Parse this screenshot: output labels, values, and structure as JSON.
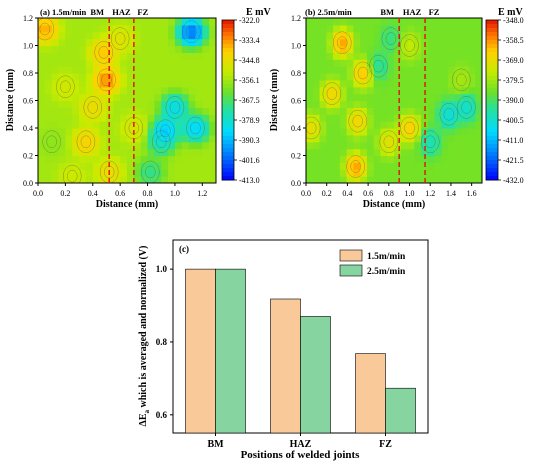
{
  "chart_data": [
    {
      "type": "heatmap",
      "panel_label": "(a) 1.5m/min",
      "xlabel": "Distance (mm)",
      "ylabel": "Distance (mm)",
      "xlim": [
        0,
        1.3
      ],
      "ylim": [
        0,
        1.2
      ],
      "x_ticks": [
        "0.0",
        "0.2",
        "0.4",
        "0.6",
        "0.8",
        "1.0",
        "1.2"
      ],
      "y_ticks": [
        "0.0",
        "0.2",
        "0.4",
        "0.6",
        "0.8",
        "1.0",
        "1.2"
      ],
      "region_labels": [
        "BM",
        "HAZ",
        "FZ"
      ],
      "region_boundaries": [
        0.52,
        0.7
      ],
      "colorbar_title": "E mV",
      "colorbar_ticks": [
        "-322.0",
        "-333.4",
        "-344.8",
        "-356.1",
        "-367.5",
        "-378.9",
        "-390.3",
        "-401.6",
        "-413.0"
      ],
      "z_range": [
        -413.0,
        -322.0
      ],
      "hotspots": [
        {
          "x": 0.05,
          "y": 1.12,
          "v": -330
        },
        {
          "x": 0.48,
          "y": 0.95,
          "v": -333
        },
        {
          "x": 0.5,
          "y": 0.75,
          "v": -326
        },
        {
          "x": 0.4,
          "y": 0.55,
          "v": -340
        },
        {
          "x": 0.35,
          "y": 0.3,
          "v": -336
        },
        {
          "x": 0.7,
          "y": 0.4,
          "v": -346
        },
        {
          "x": 0.52,
          "y": 0.08,
          "v": -340
        },
        {
          "x": 0.2,
          "y": 0.7,
          "v": -347
        },
        {
          "x": 0.6,
          "y": 1.05,
          "v": -344
        },
        {
          "x": 0.9,
          "y": 0.3,
          "v": -382
        },
        {
          "x": 1.0,
          "y": 0.55,
          "v": -392
        },
        {
          "x": 1.15,
          "y": 0.4,
          "v": -396
        },
        {
          "x": 1.12,
          "y": 1.1,
          "v": -413
        },
        {
          "x": 0.82,
          "y": 0.08,
          "v": -376
        },
        {
          "x": 0.93,
          "y": 0.38,
          "v": -400
        },
        {
          "x": 0.1,
          "y": 0.3,
          "v": -360
        },
        {
          "x": 0.25,
          "y": 0.05,
          "v": -348
        }
      ],
      "base_value": -356
    },
    {
      "type": "heatmap",
      "panel_label": "(b) 2.5m/min",
      "xlabel": "Distance (mm)",
      "ylabel": "Distance (mm)",
      "xlim": [
        0,
        1.7
      ],
      "ylim": [
        0,
        1.2
      ],
      "x_ticks": [
        "0.0",
        "0.2",
        "0.4",
        "0.6",
        "0.8",
        "1.0",
        "1.2",
        "1.4",
        "1.6"
      ],
      "y_ticks": [
        "0.0",
        "0.2",
        "0.4",
        "0.6",
        "0.8",
        "1.0",
        "1.2"
      ],
      "region_labels": [
        "BM",
        "HAZ",
        "FZ"
      ],
      "region_boundaries": [
        0.9,
        1.15
      ],
      "colorbar_title": "E mV",
      "colorbar_ticks": [
        "-348.0",
        "-358.5",
        "-369.0",
        "-379.5",
        "-390.0",
        "-400.5",
        "-411.0",
        "-421.5",
        "-432.0"
      ],
      "z_range": [
        -432.0,
        -348.0
      ],
      "hotspots": [
        {
          "x": 0.35,
          "y": 1.02,
          "v": -352
        },
        {
          "x": 0.55,
          "y": 0.8,
          "v": -356
        },
        {
          "x": 0.25,
          "y": 0.65,
          "v": -360
        },
        {
          "x": 0.5,
          "y": 0.45,
          "v": -360
        },
        {
          "x": 0.48,
          "y": 0.12,
          "v": -352
        },
        {
          "x": 0.8,
          "y": 0.3,
          "v": -365
        },
        {
          "x": 1.0,
          "y": 0.4,
          "v": -358
        },
        {
          "x": 0.05,
          "y": 0.4,
          "v": -364
        },
        {
          "x": 1.0,
          "y": 1.0,
          "v": -372
        },
        {
          "x": 1.5,
          "y": 0.75,
          "v": -377
        },
        {
          "x": 1.2,
          "y": 0.3,
          "v": -402
        },
        {
          "x": 1.38,
          "y": 0.5,
          "v": -408
        },
        {
          "x": 1.55,
          "y": 0.55,
          "v": -406
        },
        {
          "x": 0.7,
          "y": 0.85,
          "v": -398
        },
        {
          "x": 0.82,
          "y": 1.05,
          "v": -395
        }
      ],
      "base_value": -385
    },
    {
      "type": "bar",
      "panel_label": "(c)",
      "title": "",
      "xlabel": "Positions of welded joints",
      "ylabel_main": "ΔE",
      "ylabel_sub": "a",
      "ylabel_rest": " which is averaged and normalized (V)",
      "categories": [
        "BM",
        "HAZ",
        "FZ"
      ],
      "series": [
        {
          "name": "1.5m/min",
          "color": "#f9c99a",
          "values": [
            1.0,
            0.918,
            0.768
          ]
        },
        {
          "name": "2.5m/min",
          "color": "#86d5a0",
          "values": [
            1.0,
            0.87,
            0.673
          ]
        }
      ],
      "ylim": [
        0.55,
        1.08
      ],
      "y_ticks": [
        "0.6",
        "0.8",
        "1.0"
      ],
      "legend_position": "top-right"
    }
  ]
}
